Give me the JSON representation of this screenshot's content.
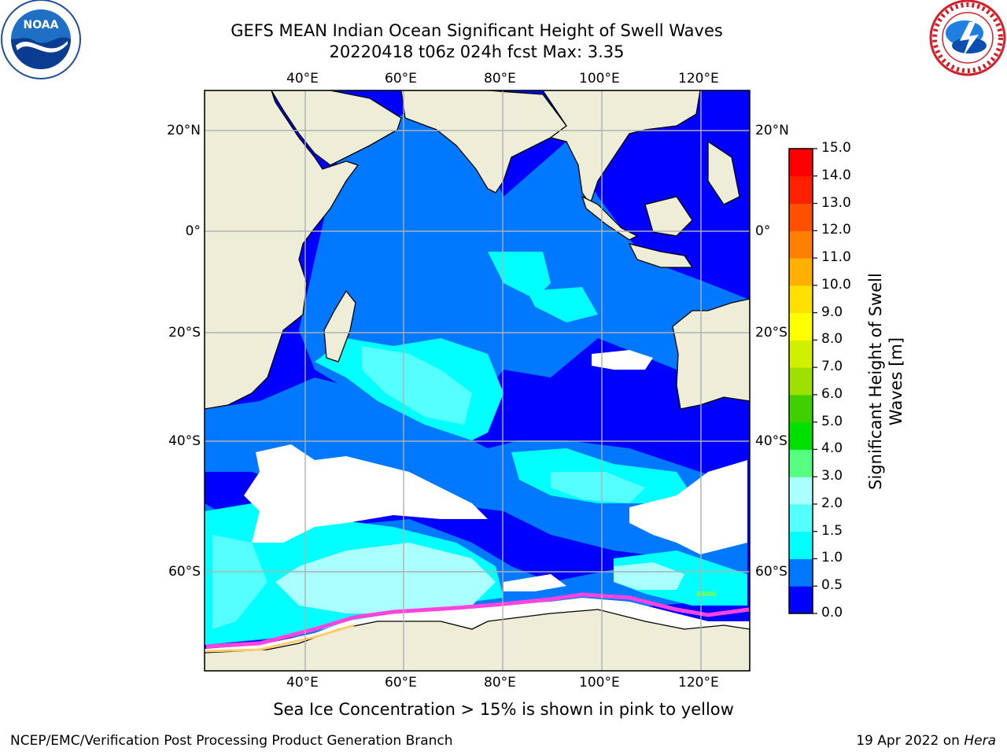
{
  "header": {
    "title_line1": "GEFS MEAN Indian Ocean Significant Height of Swell Waves",
    "title_line2": "20220418 t06z 024h fcst   Max: 3.35"
  },
  "logos": {
    "left": "noaa-logo",
    "right": "nws-logo"
  },
  "map": {
    "lon_labels": [
      "40°E",
      "60°E",
      "80°E",
      "100°E",
      "120°E"
    ],
    "lat_labels": [
      "20°N",
      "0°",
      "20°S",
      "40°S",
      "60°S"
    ],
    "colors": {
      "land": "#eeeed8",
      "ice": "#ffffff",
      "grid": "#b0b0b0"
    }
  },
  "colorbar": {
    "title": "Significant Height of Swell Waves [m]",
    "ticks": [
      "0.0",
      "0.5",
      "1.0",
      "1.5",
      "2.0",
      "3.0",
      "4.0",
      "5.0",
      "6.0",
      "7.0",
      "8.0",
      "9.0",
      "10.0",
      "11.0",
      "12.0",
      "13.0",
      "14.0",
      "15.0"
    ],
    "colors": [
      "#0000ff",
      "#0078ff",
      "#00ffff",
      "#55ffff",
      "#aaffff",
      "#55ff80",
      "#00e000",
      "#40d000",
      "#a0e000",
      "#d0f000",
      "#ffff00",
      "#ffe000",
      "#ffb000",
      "#ff8000",
      "#ff5000",
      "#ff2000",
      "#ff0000"
    ]
  },
  "caption": "Sea Ice Concentration > 15% is shown in pink to yellow",
  "footer": {
    "left": "NCEP/EMC/Verification Post Processing Product Generation Branch",
    "right_date": "19 Apr 2022 on ",
    "right_host": "Hera"
  }
}
